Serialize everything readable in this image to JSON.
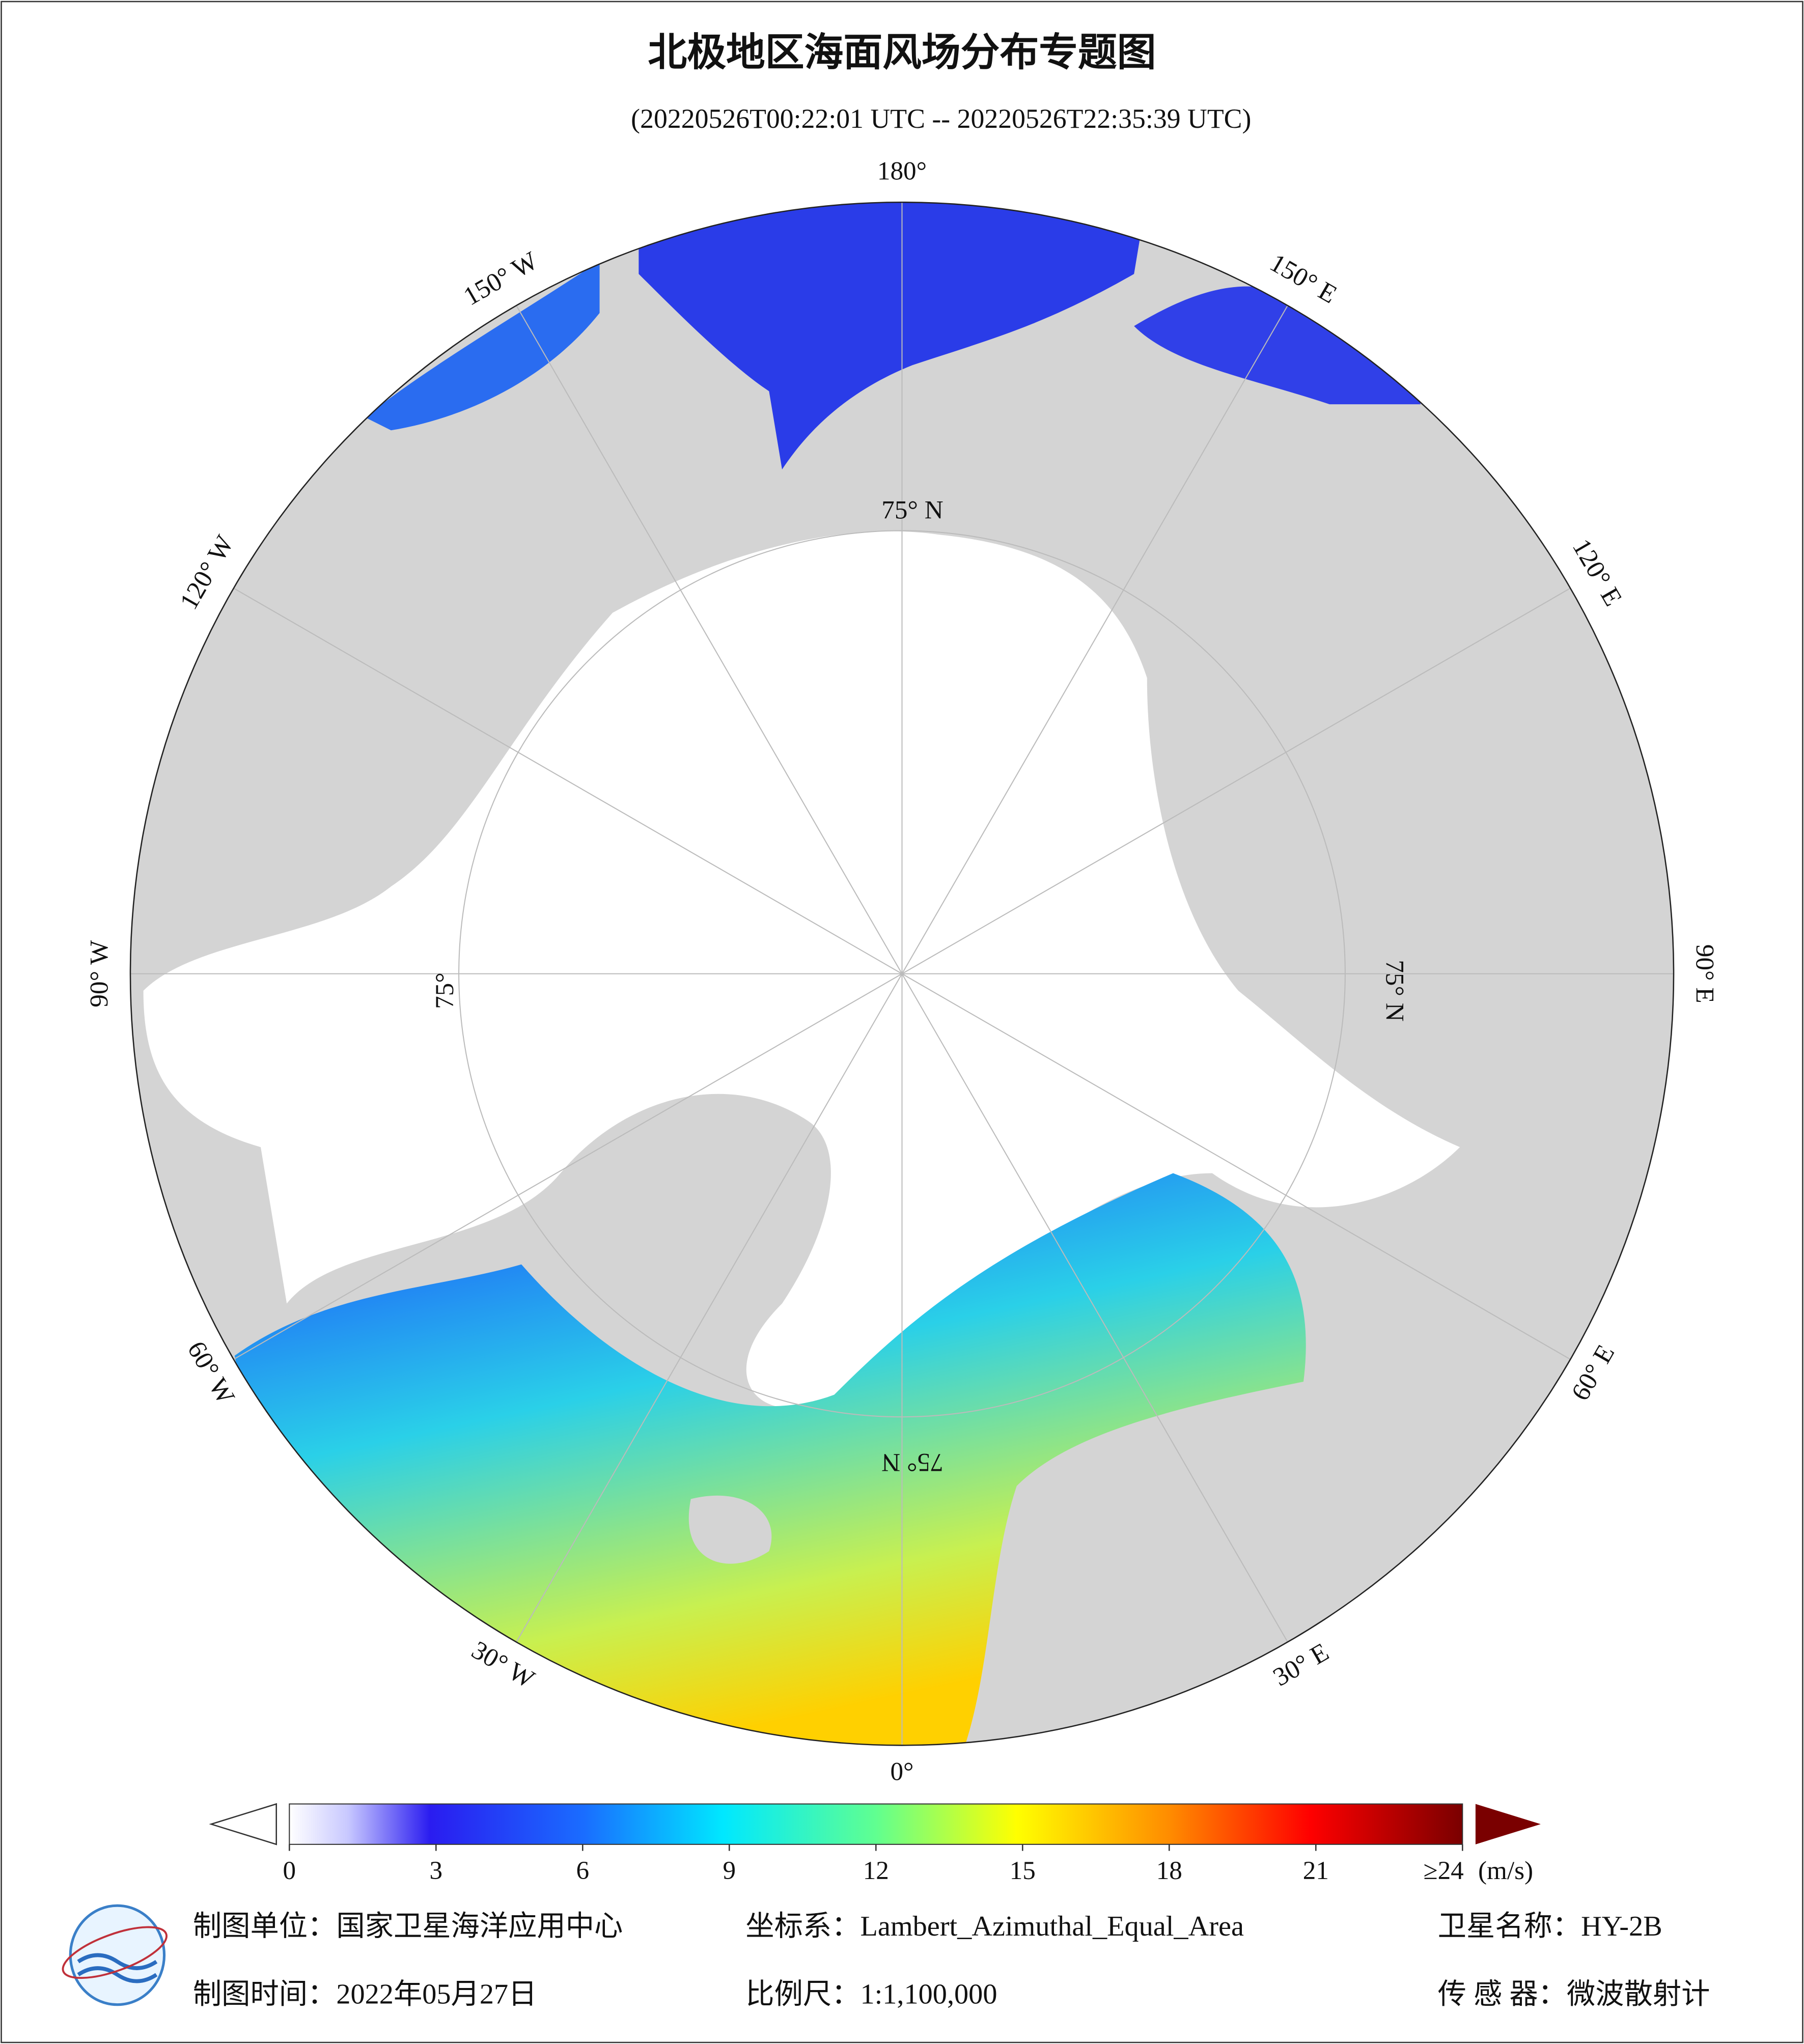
{
  "header": {
    "title": "北极地区海面风场分布专题图",
    "subtitle": "(20220526T00:22:01 UTC -- 20220526T22:35:39 UTC)"
  },
  "map": {
    "lon_labels": [
      "180°",
      "150° E",
      "120° E",
      "90° E",
      "60° E",
      "30° E",
      "0°",
      "30° W",
      "60° W",
      "90° W",
      "120° W",
      "150° W"
    ],
    "lat_labels": [
      "75° N",
      "75° N",
      "75° N",
      "75°"
    ]
  },
  "colorbar": {
    "lim": [
      0,
      24
    ],
    "ticks": [
      0,
      3,
      6,
      9,
      12,
      15,
      18,
      21,
      {
        "value": 24,
        "label": "≥24"
      }
    ],
    "unit": "(m/s)"
  },
  "footer": {
    "unit": "制图单位：国家卫星海洋应用中心",
    "crs": "坐标系：Lambert_Azimuthal_Equal_Area",
    "satellite": "卫星名称：HY-2B",
    "date": "制图时间：2022年05月27日",
    "scale": "比例尺：1:1,100,000",
    "sensor": "传 感 器：微波散射计"
  }
}
